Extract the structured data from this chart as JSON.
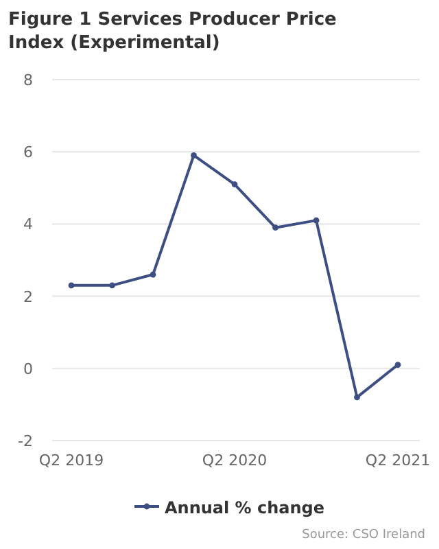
{
  "chart_data": {
    "type": "line",
    "title": "Figure 1 Services Producer Price Index (Experimental)",
    "categories": [
      "Q2 2019",
      null,
      null,
      null,
      "Q2 2020",
      null,
      null,
      null,
      "Q2 2021"
    ],
    "series": [
      {
        "name": "Annual % change",
        "color": "#3d4f82",
        "values": [
          2.3,
          2.3,
          2.6,
          5.9,
          5.1,
          3.9,
          4.1,
          -0.8,
          0.1
        ]
      }
    ],
    "ylim": [
      -2,
      8
    ],
    "yticks": [
      -2,
      0,
      2,
      4,
      6,
      8
    ],
    "grid": "y",
    "legend": "bottom",
    "marker": "circle",
    "annotations": [
      "Source: CSO Ireland"
    ]
  }
}
